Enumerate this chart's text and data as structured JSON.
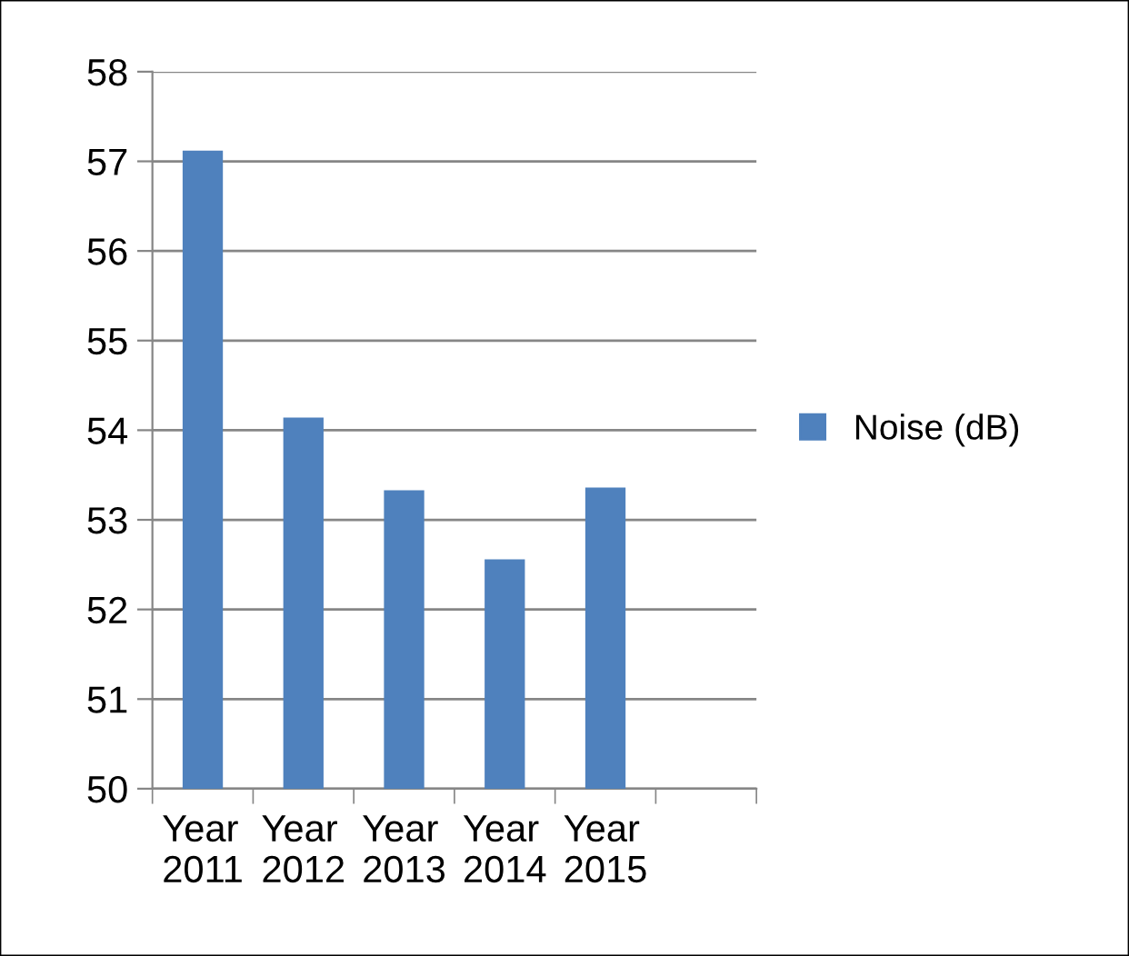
{
  "chart_data": {
    "type": "bar",
    "categories": [
      "Year 2011",
      "Year 2012",
      "Year 2013",
      "Year 2014",
      "Year 2015",
      null
    ],
    "series": [
      {
        "name": "Noise (dB)",
        "color": "#4f81bd",
        "values": [
          57.12,
          54.14,
          53.33,
          52.56,
          53.36,
          null
        ]
      }
    ],
    "ylim": [
      50,
      58
    ],
    "yticks": [
      50,
      51,
      52,
      53,
      54,
      55,
      56,
      57,
      58
    ],
    "grid": "y",
    "legend": "right"
  }
}
